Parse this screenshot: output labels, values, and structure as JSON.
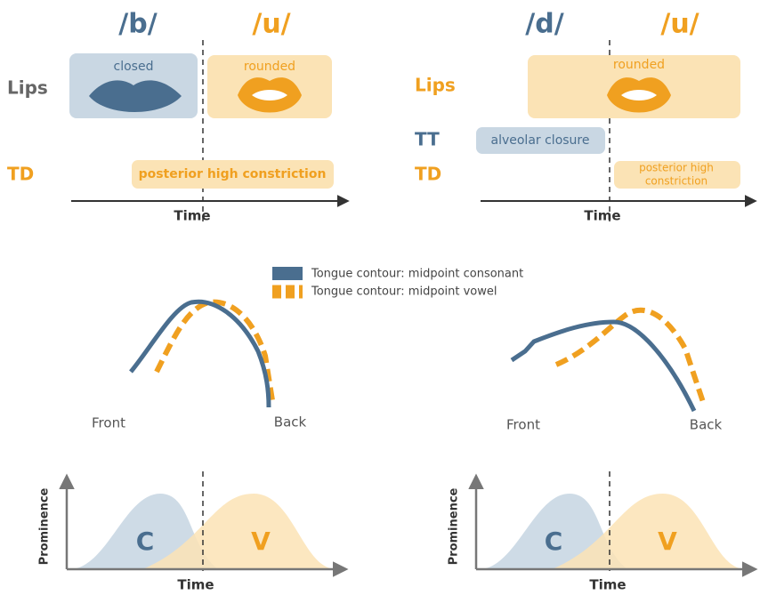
{
  "gestural_scores": [
    {
      "consonant_symbol": "/b/",
      "vowel_symbol": "/u/",
      "tier_labels": [
        "Lips",
        "TD"
      ],
      "gestures": {
        "lips_consonant": "closed",
        "lips_vowel": "rounded",
        "td": [
          "posterior high constriction"
        ]
      },
      "axis_label": "Time"
    },
    {
      "consonant_symbol": "/d/",
      "vowel_symbol": "/u/",
      "tier_labels": [
        "Lips",
        "TT",
        "TD"
      ],
      "gestures": {
        "lips_vowel": "rounded",
        "tt": "alveolar closure",
        "td": [
          "posterior high",
          "constriction"
        ]
      },
      "axis_label": "Time"
    }
  ],
  "legend": [
    "Tongue contour: midpoint consonant",
    "Tongue contour: midpoint vowel"
  ],
  "tongue_contours": [
    {
      "front_label": "Front",
      "back_label": "Back"
    },
    {
      "front_label": "Front",
      "back_label": "Back"
    }
  ],
  "prominence_plots": [
    {
      "y_axis_label": "Prominence",
      "consonant_label": "C",
      "vowel_label": "V",
      "x_axis_label": "Time"
    },
    {
      "y_axis_label": "Prominence",
      "consonant_label": "C",
      "vowel_label": "V",
      "x_axis_label": "Time"
    }
  ]
}
